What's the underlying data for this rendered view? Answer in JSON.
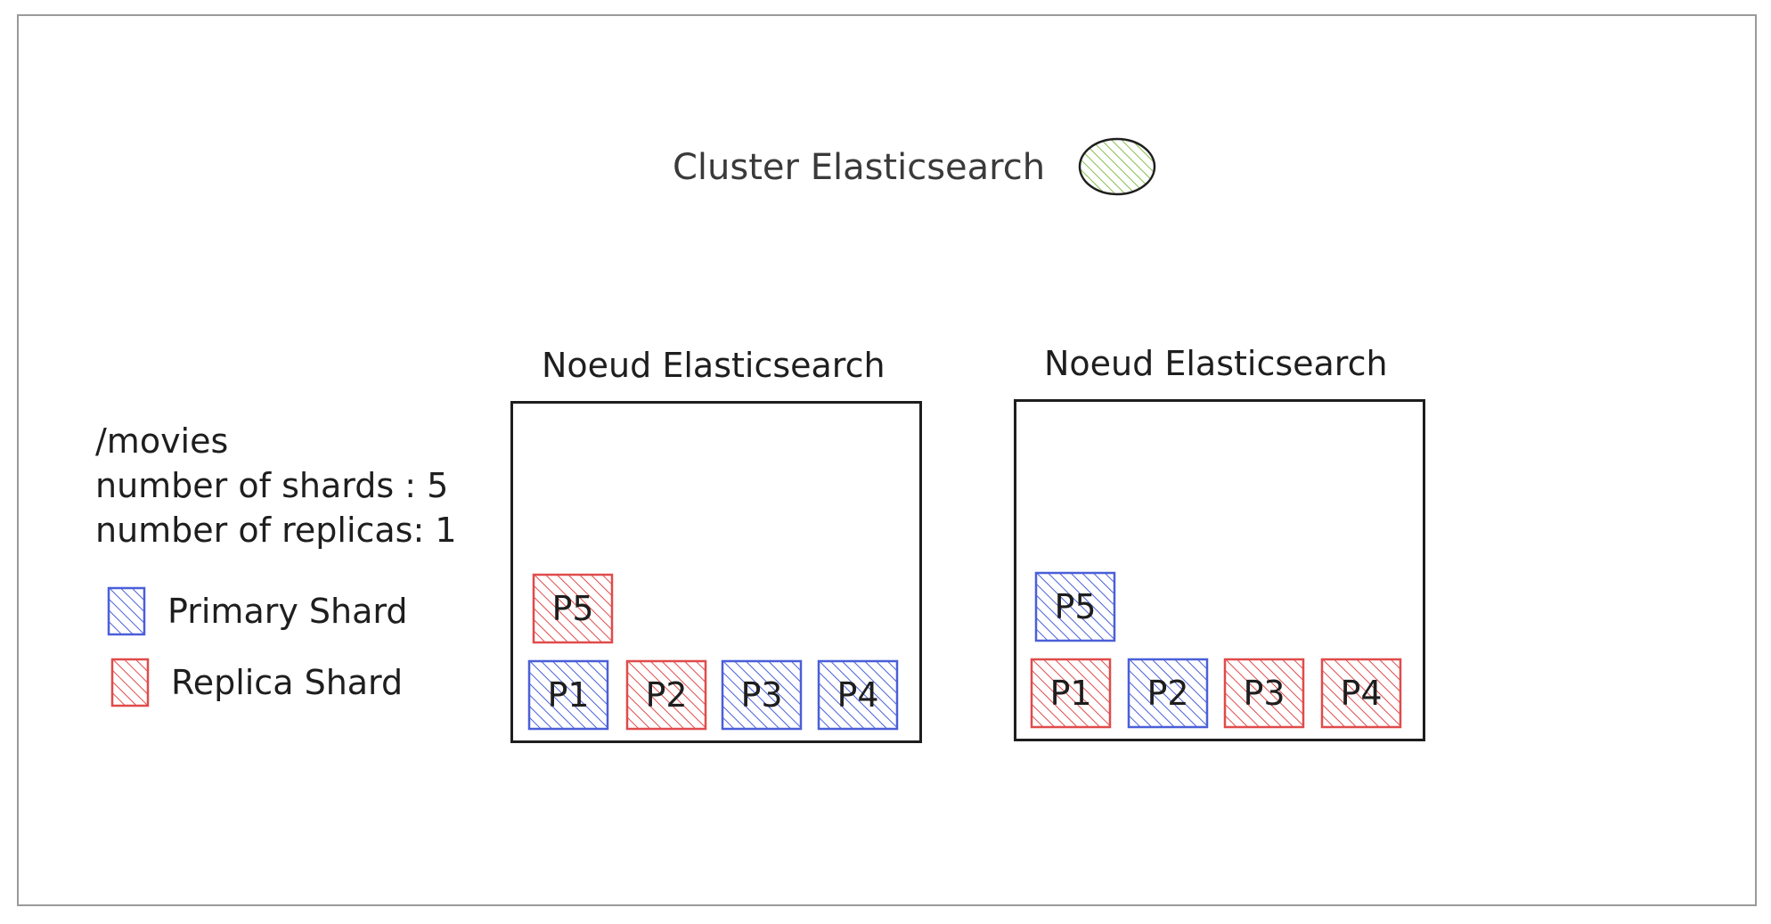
{
  "cluster": {
    "title": "Cluster Elasticsearch",
    "health_color": "#84c04a"
  },
  "index": {
    "name": "/movies",
    "shards_line": "number of shards : 5",
    "replicas_line": "number of replicas: 1"
  },
  "legend": {
    "primary_label": "Primary Shard",
    "replica_label": "Replica Shard"
  },
  "colors": {
    "primary": "#4a5fd8",
    "replica": "#e04b4b",
    "primary_fill": "#e7eafb",
    "replica_fill": "#fbe6e6"
  },
  "nodes": [
    {
      "title": "Noeud Elasticsearch",
      "shards": [
        {
          "label": "P5",
          "kind": "replica"
        },
        {
          "label": "P1",
          "kind": "primary"
        },
        {
          "label": "P2",
          "kind": "replica"
        },
        {
          "label": "P3",
          "kind": "primary"
        },
        {
          "label": "P4",
          "kind": "primary"
        }
      ]
    },
    {
      "title": "Noeud Elasticsearch",
      "shards": [
        {
          "label": "P5",
          "kind": "primary"
        },
        {
          "label": "P1",
          "kind": "replica"
        },
        {
          "label": "P2",
          "kind": "primary"
        },
        {
          "label": "P3",
          "kind": "replica"
        },
        {
          "label": "P4",
          "kind": "replica"
        }
      ]
    }
  ]
}
